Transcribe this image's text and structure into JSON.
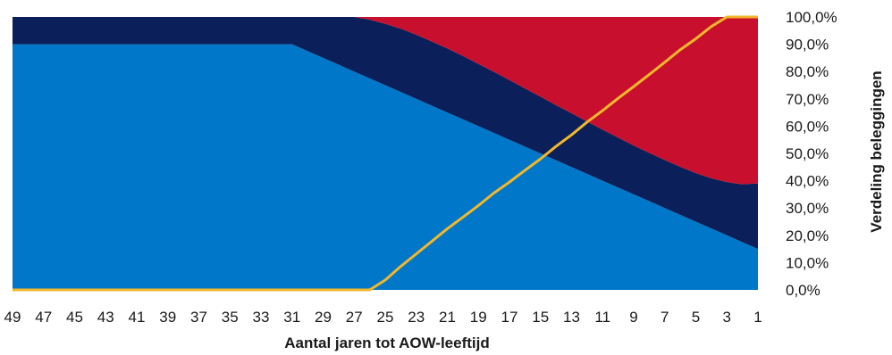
{
  "chart_data": {
    "type": "area",
    "xlabel": "Aantal jaren tot AOW-leeftijd",
    "ylabel": "Verdeling beleggingen",
    "x": [
      49,
      48,
      47,
      46,
      45,
      44,
      43,
      42,
      41,
      40,
      39,
      38,
      37,
      36,
      35,
      34,
      33,
      32,
      31,
      30,
      29,
      28,
      27,
      26,
      25,
      24,
      23,
      22,
      21,
      20,
      19,
      18,
      17,
      16,
      15,
      14,
      13,
      12,
      11,
      10,
      9,
      8,
      7,
      6,
      5,
      4,
      3,
      2,
      1
    ],
    "x_tick_labels": [
      "49",
      "47",
      "45",
      "43",
      "41",
      "39",
      "37",
      "35",
      "33",
      "31",
      "29",
      "27",
      "25",
      "23",
      "21",
      "19",
      "17",
      "15",
      "13",
      "11",
      "9",
      "7",
      "5",
      "3",
      "1"
    ],
    "y_tick_labels": [
      "0,0%",
      "10,0%",
      "20,0%",
      "30,0%",
      "40,0%",
      "50,0%",
      "60,0%",
      "70,0%",
      "80,0%",
      "90,0%",
      "100,0%"
    ],
    "ylim": [
      0,
      100
    ],
    "stacked": true,
    "series": [
      {
        "color": "#0077c8",
        "values": [
          90,
          90,
          90,
          90,
          90,
          90,
          90,
          90,
          90,
          90,
          90,
          90,
          90,
          90,
          90,
          90,
          90,
          90,
          90,
          87.5,
          85,
          82.5,
          80,
          77.5,
          75,
          72.5,
          70,
          67.5,
          65,
          62.5,
          60,
          57.5,
          55,
          52.5,
          50,
          47.5,
          45,
          42.5,
          40,
          37.5,
          35,
          32.5,
          30,
          27.5,
          25,
          22.5,
          20,
          17.5,
          15
        ]
      },
      {
        "color": "#0b1f5a",
        "values": [
          10,
          10,
          10,
          10,
          10,
          10,
          10,
          10,
          10,
          10,
          10,
          10,
          10,
          10,
          10,
          10,
          10,
          10,
          10,
          12.5,
          15,
          17.5,
          20,
          21.5,
          22.5,
          23.2,
          23.5,
          23.5,
          23.5,
          23.2,
          22.8,
          22.4,
          21.9,
          21.3,
          20.8,
          20.2,
          19.7,
          19.2,
          18.7,
          18.3,
          17.9,
          17.7,
          17.6,
          17.6,
          17.8,
          18.4,
          19.5,
          21.2,
          24
        ]
      },
      {
        "color": "#c8102e",
        "values": [
          0,
          0,
          0,
          0,
          0,
          0,
          0,
          0,
          0,
          0,
          0,
          0,
          0,
          0,
          0,
          0,
          0,
          0,
          0,
          0,
          0,
          0,
          0,
          1,
          2.5,
          4.3,
          6.5,
          9,
          11.5,
          14.3,
          17.2,
          20.1,
          23.1,
          26.2,
          29.2,
          32.3,
          35.3,
          38.3,
          41.3,
          44.2,
          47.1,
          49.8,
          52.4,
          54.9,
          57.2,
          59.1,
          60.5,
          61.3,
          61
        ]
      }
    ],
    "line_series": {
      "color": "#f2b72b",
      "values": [
        0,
        0,
        0,
        0,
        0,
        0,
        0,
        0,
        0,
        0,
        0,
        0,
        0,
        0,
        0,
        0,
        0,
        0,
        0,
        0,
        0,
        0,
        0,
        0,
        3.6,
        8.6,
        13.2,
        17.8,
        22.4,
        26.6,
        30.9,
        35.5,
        39.5,
        43.8,
        48,
        52.6,
        56.8,
        61.5,
        65.7,
        70.2,
        74.5,
        78.9,
        83.4,
        88,
        92,
        96.5,
        100,
        100,
        100
      ]
    }
  }
}
